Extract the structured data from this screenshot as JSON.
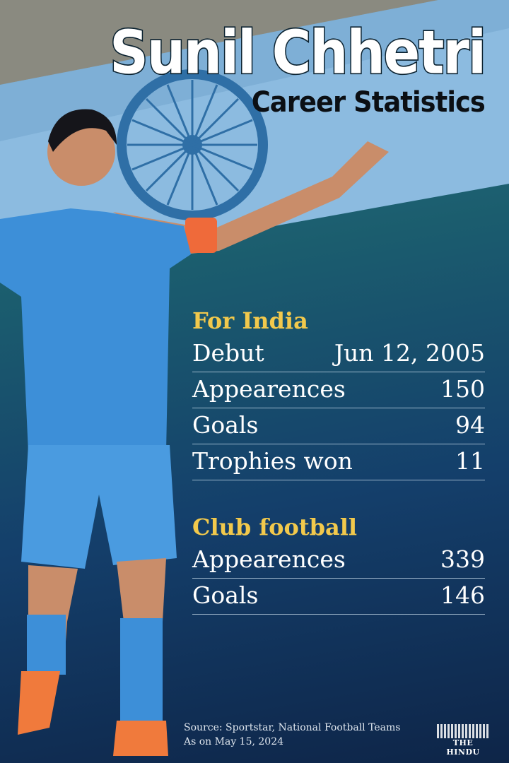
{
  "header": {
    "title": "Sunil Chhetri",
    "subtitle": "Career Statistics"
  },
  "for_india": {
    "heading": "For India",
    "rows": [
      {
        "label": "Debut",
        "value": "Jun 12, 2005"
      },
      {
        "label": "Appearences",
        "value": "150"
      },
      {
        "label": "Goals",
        "value": "94"
      },
      {
        "label": "Trophies won",
        "value": "11"
      }
    ]
  },
  "club_football": {
    "heading": "Club football",
    "rows": [
      {
        "label": "Appearences",
        "value": "339"
      },
      {
        "label": "Goals",
        "value": "146"
      }
    ]
  },
  "footer": {
    "source": "Source: Sportstar, National Football Teams",
    "as_on": "As on May 15, 2024",
    "logo": "THE HINDU"
  },
  "colors": {
    "heading": "#f2c94c",
    "jersey": "#3d8fd8",
    "band": "#8fbde0"
  }
}
